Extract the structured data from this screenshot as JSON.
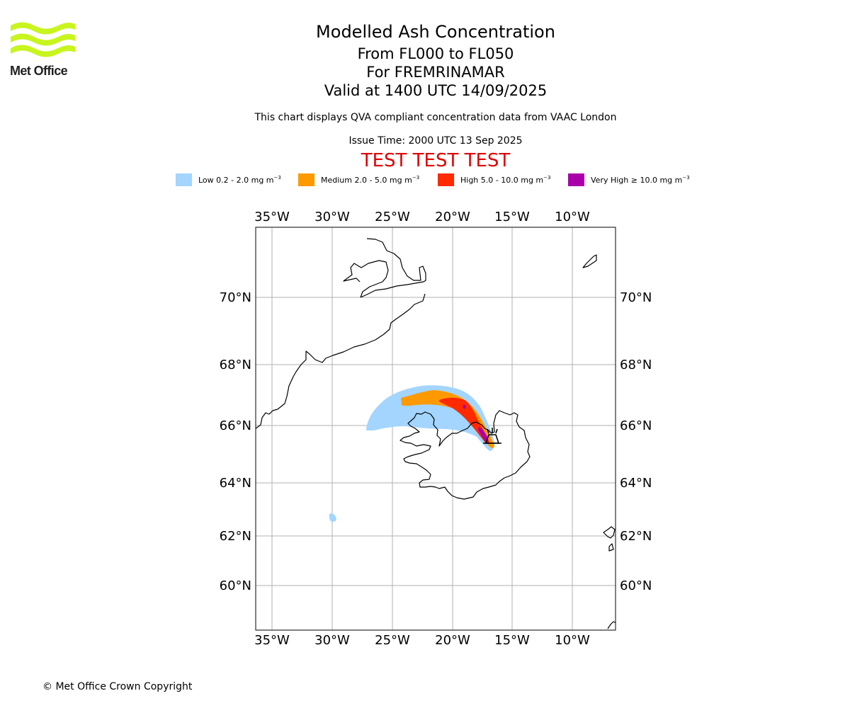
{
  "logo": {
    "text": "Met Office",
    "color": "#c8f51e"
  },
  "header": {
    "title": "Modelled Ash Concentration",
    "flight_levels": "From FL000 to FL050",
    "volcano": "For FREMRINAMAR",
    "valid": "Valid at 1400 UTC 14/09/2025",
    "description": "This chart displays QVA compliant concentration data from VAAC London",
    "issue_time": "Issue Time: 2000 UTC 13 Sep 2025",
    "test_banner": "TEST TEST TEST"
  },
  "legend": [
    {
      "label": "Low 0.2 - 2.0 mg m",
      "exp": "−3",
      "color": "#a3d5ff"
    },
    {
      "label": "Medium 2.0 - 5.0 mg m",
      "exp": "−3",
      "color": "#ff9900"
    },
    {
      "label": "High 5.0 - 10.0 mg m",
      "exp": "−3",
      "color": "#ff2a00"
    },
    {
      "label": "Very High ≥ 10.0 mg m",
      "exp": "−3",
      "color": "#aa00aa"
    }
  ],
  "map": {
    "lon_labels": [
      "35°W",
      "30°W",
      "25°W",
      "20°W",
      "15°W",
      "10°W"
    ],
    "lat_labels": [
      "70°N",
      "68°N",
      "66°N",
      "64°N",
      "62°N",
      "60°N"
    ],
    "volcano_marker": "volcano-icon"
  },
  "footer": {
    "copyright": "© Met Office Crown Copyright"
  }
}
